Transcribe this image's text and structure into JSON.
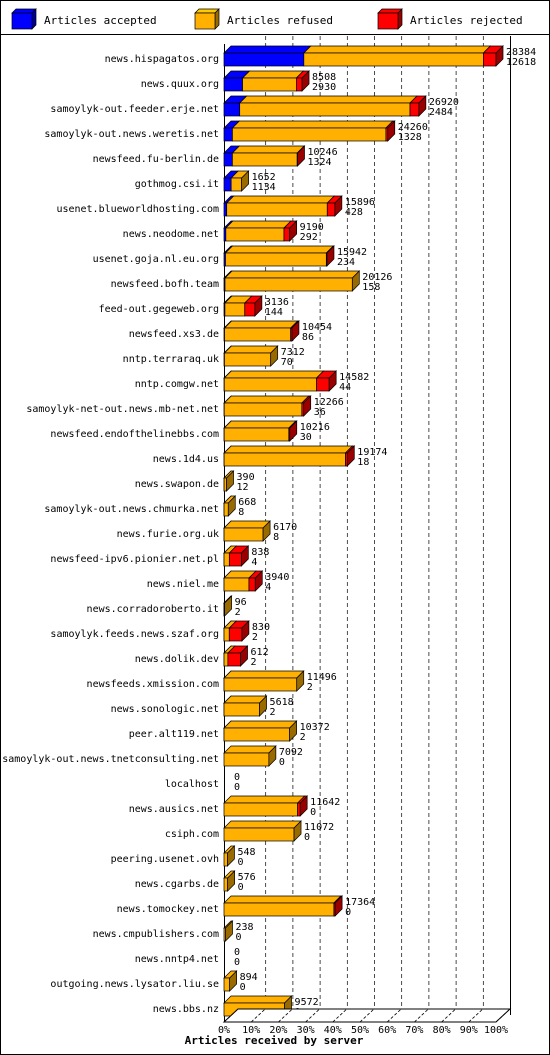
{
  "chart_data": {
    "type": "bar",
    "orientation": "horizontal",
    "stacked": true,
    "xlabel": "Articles received by server",
    "xlim": [
      0,
      100
    ],
    "x_unit": "%",
    "x_ticks": [
      "0%",
      "10%",
      "20%",
      "30%",
      "40%",
      "50%",
      "60%",
      "70%",
      "80%",
      "90%",
      "100%"
    ],
    "grid": "vertical dashed",
    "legend_position": "top",
    "series": [
      {
        "name": "Articles accepted",
        "color": "#0000ff"
      },
      {
        "name": "Articles refused",
        "color": "#ffb000"
      },
      {
        "name": "Articles rejected",
        "color": "#ff0000"
      }
    ],
    "rows": [
      {
        "server": "news.hispagatos.org",
        "accepted": 12618,
        "refused": 28384,
        "rejected": 2000,
        "value_top": "28384",
        "value_bottom": "12618"
      },
      {
        "server": "news.quux.org",
        "accepted": 2930,
        "refused": 8508,
        "rejected": 900,
        "value_top": "8508",
        "value_bottom": "2930"
      },
      {
        "server": "samoylyk-out.feeder.erje.net",
        "accepted": 2484,
        "refused": 26920,
        "rejected": 1400,
        "value_top": "26920",
        "value_bottom": "2484"
      },
      {
        "server": "samoylyk-out.news.weretis.net",
        "accepted": 1328,
        "refused": 24260,
        "rejected": 300,
        "value_top": "24260",
        "value_bottom": "1328"
      },
      {
        "server": "newsfeed.fu-berlin.de",
        "accepted": 1324,
        "refused": 10246,
        "rejected": 50,
        "value_top": "10246",
        "value_bottom": "1324"
      },
      {
        "server": "gothmog.csi.it",
        "accepted": 1134,
        "refused": 1652,
        "rejected": 0,
        "value_top": "1652",
        "value_bottom": "1134"
      },
      {
        "server": "usenet.blueworldhosting.com",
        "accepted": 428,
        "refused": 15896,
        "rejected": 1200,
        "value_top": "15896",
        "value_bottom": "428"
      },
      {
        "server": "news.neodome.net",
        "accepted": 292,
        "refused": 9190,
        "rejected": 900,
        "value_top": "9190",
        "value_bottom": "292"
      },
      {
        "server": "usenet.goja.nl.eu.org",
        "accepted": 234,
        "refused": 15942,
        "rejected": 100,
        "value_top": "15942",
        "value_bottom": "234"
      },
      {
        "server": "newsfeed.bofh.team",
        "accepted": 158,
        "refused": 20126,
        "rejected": 0,
        "value_top": "20126",
        "value_bottom": "158"
      },
      {
        "server": "feed-out.gegeweb.org",
        "accepted": 144,
        "refused": 3136,
        "rejected": 1600,
        "value_top": "3136",
        "value_bottom": "144"
      },
      {
        "server": "newsfeed.xs3.de",
        "accepted": 86,
        "refused": 10454,
        "rejected": 200,
        "value_top": "10454",
        "value_bottom": "86"
      },
      {
        "server": "nntp.terraraq.uk",
        "accepted": 70,
        "refused": 7312,
        "rejected": 0,
        "value_top": "7312",
        "value_bottom": "70"
      },
      {
        "server": "nntp.comgw.net",
        "accepted": 44,
        "refused": 14582,
        "rejected": 2000,
        "value_top": "14582",
        "value_bottom": "44"
      },
      {
        "server": "samoylyk-net-out.news.mb-net.net",
        "accepted": 36,
        "refused": 12266,
        "rejected": 300,
        "value_top": "12266",
        "value_bottom": "36"
      },
      {
        "server": "newsfeed.endofthelinebbs.com",
        "accepted": 30,
        "refused": 10216,
        "rejected": 150,
        "value_top": "10216",
        "value_bottom": "30"
      },
      {
        "server": "news.1d4.us",
        "accepted": 18,
        "refused": 19174,
        "rejected": 300,
        "value_top": "19174",
        "value_bottom": "18"
      },
      {
        "server": "news.swapon.de",
        "accepted": 12,
        "refused": 390,
        "rejected": 0,
        "value_top": "390",
        "value_bottom": "12"
      },
      {
        "server": "samoylyk-out.news.chmurka.net",
        "accepted": 8,
        "refused": 668,
        "rejected": 0,
        "value_top": "668",
        "value_bottom": "8"
      },
      {
        "server": "news.furie.org.uk",
        "accepted": 8,
        "refused": 6170,
        "rejected": 0,
        "value_top": "6170",
        "value_bottom": "8"
      },
      {
        "server": "newsfeed-ipv6.pionier.net.pl",
        "accepted": 4,
        "refused": 838,
        "rejected": 1900,
        "value_top": "838",
        "value_bottom": "4"
      },
      {
        "server": "news.niel.me",
        "accepted": 4,
        "refused": 3940,
        "rejected": 1000,
        "value_top": "3940",
        "value_bottom": "4"
      },
      {
        "server": "news.corradoroberto.it",
        "accepted": 2,
        "refused": 96,
        "rejected": 0,
        "value_top": "96",
        "value_bottom": "2"
      },
      {
        "server": "samoylyk.feeds.news.szaf.org",
        "accepted": 2,
        "refused": 830,
        "rejected": 2000,
        "value_top": "830",
        "value_bottom": "2"
      },
      {
        "server": "news.dolik.dev",
        "accepted": 2,
        "refused": 612,
        "rejected": 2000,
        "value_top": "612",
        "value_bottom": "2"
      },
      {
        "server": "newsfeeds.xmission.com",
        "accepted": 2,
        "refused": 11496,
        "rejected": 0,
        "value_top": "11496",
        "value_bottom": "2"
      },
      {
        "server": "news.sonologic.net",
        "accepted": 2,
        "refused": 5618,
        "rejected": 0,
        "value_top": "5618",
        "value_bottom": "2"
      },
      {
        "server": "peer.alt119.net",
        "accepted": 2,
        "refused": 10372,
        "rejected": 0,
        "value_top": "10372",
        "value_bottom": "2"
      },
      {
        "server": "samoylyk-out.news.tnetconsulting.net",
        "accepted": 0,
        "refused": 7092,
        "rejected": 0,
        "value_top": "7092",
        "value_bottom": "0"
      },
      {
        "server": "localhost",
        "accepted": 0,
        "refused": 0,
        "rejected": 0,
        "value_top": "0",
        "value_bottom": "0"
      },
      {
        "server": "news.ausics.net",
        "accepted": 0,
        "refused": 11642,
        "rejected": 400,
        "value_top": "11642",
        "value_bottom": "0"
      },
      {
        "server": "csiph.com",
        "accepted": 0,
        "refused": 11072,
        "rejected": 0,
        "value_top": "11072",
        "value_bottom": "0"
      },
      {
        "server": "peering.usenet.ovh",
        "accepted": 0,
        "refused": 548,
        "rejected": 0,
        "value_top": "548",
        "value_bottom": "0"
      },
      {
        "server": "news.cgarbs.de",
        "accepted": 0,
        "refused": 576,
        "rejected": 0,
        "value_top": "576",
        "value_bottom": "0"
      },
      {
        "server": "news.tomockey.net",
        "accepted": 0,
        "refused": 17364,
        "rejected": 200,
        "value_top": "17364",
        "value_bottom": "0"
      },
      {
        "server": "news.cmpublishers.com",
        "accepted": 0,
        "refused": 238,
        "rejected": 0,
        "value_top": "238",
        "value_bottom": "0"
      },
      {
        "server": "news.nntp4.net",
        "accepted": 0,
        "refused": 0,
        "rejected": 0,
        "value_top": "0",
        "value_bottom": "0"
      },
      {
        "server": "outgoing.news.lysator.liu.se",
        "accepted": 0,
        "refused": 894,
        "rejected": 0,
        "value_top": "894",
        "value_bottom": "0"
      },
      {
        "server": "news.bbs.nz",
        "accepted": 0,
        "refused": 9572,
        "rejected": 0,
        "value_top": "9572",
        "value_bottom": "0"
      }
    ]
  }
}
